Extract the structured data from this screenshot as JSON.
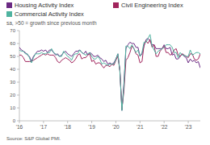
{
  "chart_data": {
    "type": "line",
    "subtitle": "sa, >50 = growth since previous month",
    "source": "Source: S&P Global PMI.",
    "categories": [
      "'16",
      null,
      null,
      null,
      null,
      null,
      null,
      null,
      null,
      null,
      null,
      null,
      "'17",
      null,
      null,
      null,
      null,
      null,
      null,
      null,
      null,
      null,
      null,
      null,
      "'18",
      null,
      null,
      null,
      null,
      null,
      null,
      null,
      null,
      null,
      null,
      null,
      "'19",
      null,
      null,
      null,
      null,
      null,
      null,
      null,
      null,
      null,
      null,
      null,
      "'20",
      null,
      null,
      null,
      null,
      null,
      null,
      null,
      null,
      null,
      null,
      null,
      "'21",
      null,
      null,
      null,
      null,
      null,
      null,
      null,
      null,
      null,
      null,
      null,
      "'22",
      null,
      null,
      null,
      null,
      null,
      null,
      null,
      null,
      null,
      null,
      null,
      "'23",
      null,
      null,
      null,
      null,
      null,
      null
    ],
    "series": [
      {
        "name": "Housing Activity Index",
        "color": "#6b2a83",
        "values": [
          57,
          55,
          54,
          53,
          51,
          50,
          46,
          50,
          52,
          54,
          54,
          55,
          54,
          55,
          53,
          55,
          55,
          53,
          51,
          52,
          50,
          51,
          53,
          54,
          52,
          51,
          50,
          52,
          54,
          54,
          55,
          53,
          52,
          54,
          51,
          53,
          52,
          50,
          50,
          51,
          49,
          48,
          46,
          47,
          44,
          45,
          44,
          45,
          48,
          52,
          39,
          8,
          29,
          56,
          59,
          61,
          60,
          60,
          57,
          57,
          50,
          52,
          58,
          63,
          64,
          62,
          59,
          59,
          56,
          56,
          56,
          56,
          59,
          56,
          56,
          57,
          51,
          52,
          48,
          48,
          50,
          52,
          50,
          49,
          45,
          48,
          46,
          47,
          45,
          46,
          41
        ]
      },
      {
        "name": "Civil Engineering Index",
        "color": "#a1245c",
        "values": [
          51,
          51,
          49,
          46,
          46,
          46,
          46,
          47,
          48,
          49,
          50,
          51,
          52,
          51,
          52,
          51,
          51,
          51,
          49,
          46,
          45,
          47,
          48,
          49,
          48,
          47,
          45,
          46,
          48,
          51,
          52,
          48,
          49,
          49,
          51,
          52,
          46,
          47,
          44,
          45,
          45,
          43,
          41,
          43,
          43,
          42,
          44,
          43,
          47,
          50,
          39,
          9,
          23,
          47,
          49,
          53,
          58,
          56,
          52,
          51,
          45,
          46,
          59,
          62,
          60,
          63,
          57,
          59,
          50,
          50,
          54,
          56,
          58,
          53,
          53,
          51,
          52,
          55,
          56,
          51,
          50,
          52,
          51,
          50,
          49,
          52,
          52,
          48,
          47,
          48,
          52
        ]
      },
      {
        "name": "Commercial Activity Index",
        "color": "#4fb3a0",
        "values": [
          55,
          54,
          54,
          52,
          52,
          49,
          45,
          49,
          52,
          52,
          52,
          53,
          52,
          52,
          53,
          53,
          56,
          53,
          52,
          51,
          50,
          50,
          54,
          52,
          50,
          49,
          47,
          51,
          52,
          52,
          55,
          53,
          52,
          51,
          52,
          53,
          50,
          48,
          48,
          50,
          48,
          44,
          45,
          44,
          43,
          44,
          44,
          44,
          48,
          52,
          38,
          8,
          27,
          58,
          58,
          56,
          59,
          56,
          53,
          55,
          50,
          53,
          61,
          61,
          64,
          67,
          58,
          55,
          52,
          54,
          55,
          56,
          57,
          59,
          59,
          59,
          57,
          53,
          53,
          49,
          53,
          51,
          51,
          50,
          50,
          55,
          51,
          52,
          53,
          53,
          52
        ]
      }
    ],
    "ylim": [
      0,
      70
    ],
    "yticks": [
      0,
      10,
      20,
      30,
      40,
      50,
      60,
      70
    ],
    "grid": false,
    "legend": "top"
  }
}
